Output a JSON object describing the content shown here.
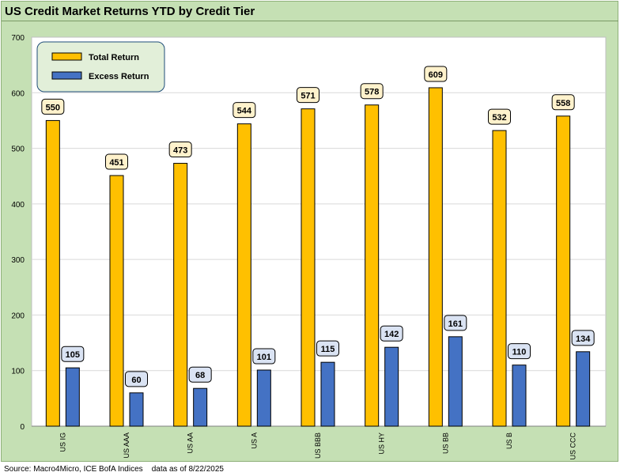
{
  "chart_data": {
    "type": "bar",
    "title": "US Credit Market Returns YTD by Credit Tier",
    "categories": [
      "US IG",
      "US AAA",
      "US AA",
      "US A",
      "US BBB",
      "US HY",
      "US BB",
      "US B",
      "US CCC"
    ],
    "series": [
      {
        "name": "Total Return",
        "color": "#ffc000",
        "values": [
          550,
          451,
          473,
          544,
          571,
          578,
          609,
          532,
          558
        ]
      },
      {
        "name": "Excess Return",
        "color": "#4472c4",
        "values": [
          105,
          60,
          68,
          101,
          115,
          142,
          161,
          110,
          134
        ]
      }
    ],
    "ylim": [
      0,
      700
    ],
    "yticks": [
      0,
      100,
      200,
      300,
      400,
      500,
      600,
      700
    ],
    "grid": true,
    "legend": "top-left",
    "label_colors": {
      "Total Return": "#fff2cc",
      "Excess Return": "#dae3f3"
    }
  },
  "footer": {
    "source": "Source: Macro4Micro, ICE BofA Indices",
    "date_note": "data as of 8/22/2025"
  }
}
